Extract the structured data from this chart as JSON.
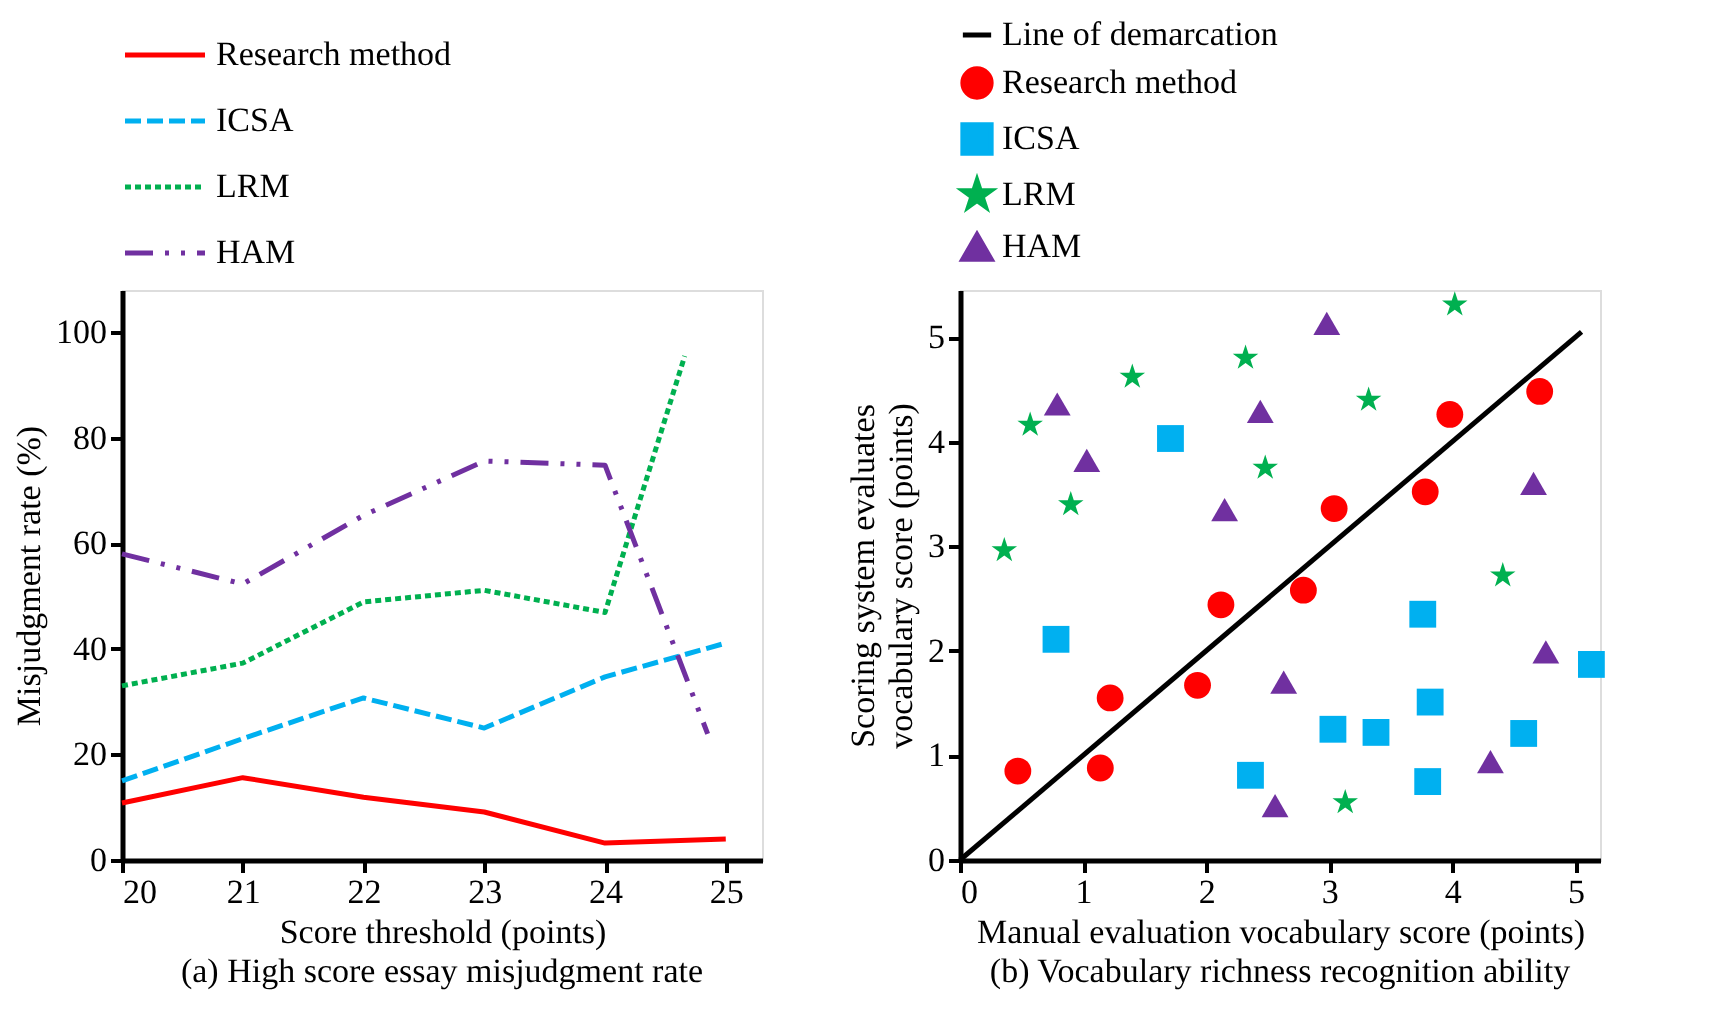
{
  "chart_data": [
    {
      "type": "line",
      "title": "(a) High score essay misjudgment rate",
      "xlabel": "Score threshold (points)",
      "ylabel": "Misjudgment rate (%)",
      "xlim": [
        20,
        25.3
      ],
      "ylim": [
        0,
        108
      ],
      "xticks": [
        20,
        21,
        22,
        23,
        24,
        25
      ],
      "yticks": [
        0,
        20,
        40,
        60,
        80,
        100
      ],
      "grid": false,
      "legend": "top",
      "series": [
        {
          "name": "Research method",
          "color": "#ff0000",
          "line_style": "solid",
          "x": [
            20,
            21,
            22,
            23,
            24,
            25
          ],
          "values": [
            10.8,
            15.6,
            11.9,
            9.1,
            3.2,
            4.0
          ]
        },
        {
          "name": "ICSA",
          "color": "#00b0f0",
          "line_style": "dashed",
          "x": [
            20,
            21,
            22,
            23,
            24,
            25
          ],
          "values": [
            15,
            23,
            30.7,
            25,
            34.7,
            41.1
          ]
        },
        {
          "name": "LRM",
          "color": "#00b050",
          "line_style": "dotted",
          "x": [
            20,
            21,
            22,
            23,
            24,
            24.66
          ],
          "values": [
            33,
            37.3,
            48.9,
            51.1,
            46.9,
            95.5
          ]
        },
        {
          "name": "HAM",
          "color": "#7030a0",
          "line_style": "dashdot",
          "x": [
            20,
            21,
            22,
            23,
            24,
            24.85
          ],
          "values": [
            58,
            52.3,
            65.3,
            75.6,
            74.8,
            23.9
          ]
        }
      ]
    },
    {
      "type": "scatter",
      "title": "(b) Vocabulary richness recognition ability",
      "xlabel": "Manual evaluation vocabulary score (points)",
      "ylabel": "Scoring system evaluates vocabulary score (points)",
      "xlim": [
        0,
        5.2
      ],
      "ylim": [
        0,
        5.45
      ],
      "xticks": [
        0,
        1,
        2,
        3,
        4,
        5
      ],
      "yticks": [
        0,
        1,
        2,
        3,
        4,
        5
      ],
      "grid": false,
      "legend": "top",
      "series": [
        {
          "name": "Line of demarcation",
          "type": "line",
          "color": "#000000",
          "line_style": "solid",
          "x": [
            0,
            5.05
          ],
          "values": [
            0,
            5.05
          ]
        },
        {
          "name": "Research method",
          "color": "#ff0000",
          "marker": "circle",
          "x": [
            0.47,
            1.14,
            1.22,
            1.93,
            2.12,
            2.79,
            3.04,
            3.78,
            3.98,
            4.71
          ],
          "values": [
            0.85,
            0.88,
            1.55,
            1.67,
            2.44,
            2.58,
            3.36,
            3.52,
            4.26,
            4.48
          ]
        },
        {
          "name": "ICSA",
          "color": "#00b0f0",
          "marker": "square",
          "x": [
            0.78,
            1.71,
            2.36,
            3.03,
            3.38,
            3.76,
            3.82,
            3.8,
            4.58,
            5.13
          ],
          "values": [
            2.11,
            4.03,
            0.81,
            1.25,
            1.22,
            2.35,
            1.51,
            0.75,
            1.21,
            1.87
          ]
        },
        {
          "name": "LRM",
          "color": "#00b050",
          "marker": "star",
          "x": [
            0.36,
            0.57,
            0.9,
            1.4,
            2.32,
            2.48,
            3.32,
            3.13,
            4.02,
            4.41
          ],
          "values": [
            2.96,
            4.16,
            3.4,
            4.62,
            4.8,
            3.75,
            4.4,
            0.55,
            5.31,
            2.72
          ]
        },
        {
          "name": "HAM",
          "color": "#7030a0",
          "marker": "triangle",
          "x": [
            0.79,
            1.03,
            2.15,
            2.44,
            2.63,
            2.56,
            2.98,
            4.31,
            4.66,
            4.76
          ],
          "values": [
            4.36,
            3.82,
            3.35,
            4.29,
            1.7,
            0.52,
            5.13,
            0.94,
            3.6,
            1.99
          ]
        }
      ]
    }
  ]
}
